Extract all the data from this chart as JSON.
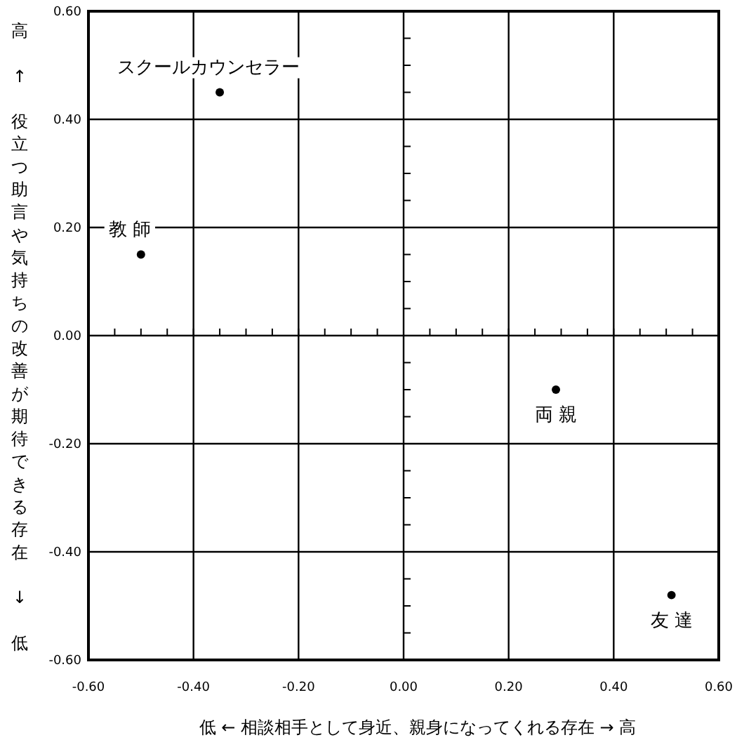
{
  "chart_data": {
    "type": "scatter",
    "xlabel": "低 ← 相談相手として身近、親身になってくれる存在 → 高",
    "ylabel": "高 ↑ 役立つ助言や気持ちの改善が期待できる存在 ↓ 低",
    "xlim": [
      -0.6,
      0.6
    ],
    "ylim": [
      -0.6,
      0.6
    ],
    "xticks": [
      {
        "value": -0.6,
        "label": "-0.60"
      },
      {
        "value": -0.4,
        "label": "-0.40"
      },
      {
        "value": -0.2,
        "label": "-0.20"
      },
      {
        "value": 0,
        "label": "0.00"
      },
      {
        "value": 0.2,
        "label": "0.20"
      },
      {
        "value": 0.4,
        "label": "0.40"
      },
      {
        "value": 0.6,
        "label": "0.60"
      }
    ],
    "yticks": [
      {
        "value": -0.6,
        "label": "-0.60"
      },
      {
        "value": -0.4,
        "label": "-0.40"
      },
      {
        "value": -0.2,
        "label": "-0.20"
      },
      {
        "value": 0,
        "label": "0.00"
      },
      {
        "value": 0.2,
        "label": "0.20"
      },
      {
        "value": 0.4,
        "label": "0.40"
      },
      {
        "value": 0.6,
        "label": "0.60"
      }
    ],
    "grid": true,
    "marker": "circle",
    "series": [
      {
        "name": "スクールカウンセラー",
        "color": "#000000",
        "x": [
          -0.35
        ],
        "values": [
          0.45
        ]
      },
      {
        "name": "教 師",
        "color": "#000000",
        "x": [
          -0.5
        ],
        "values": [
          0.15
        ]
      },
      {
        "name": "両 親",
        "color": "#000000",
        "x": [
          0.29
        ],
        "values": [
          -0.1
        ]
      },
      {
        "name": "友 達",
        "color": "#000000",
        "x": [
          0.51
        ],
        "values": [
          -0.48
        ]
      }
    ]
  }
}
